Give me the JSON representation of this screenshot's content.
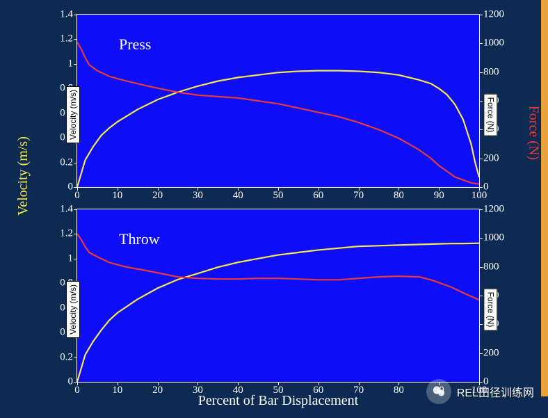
{
  "layout": {
    "background_color": "#0d2b52",
    "plot_background": "#0d0df7",
    "border_color": "#ffffff",
    "tick_color": "#ffffff",
    "tick_fontsize": 15,
    "orange_bar_color": "#e8a33d"
  },
  "x_axis": {
    "label": "Percent of Bar Displacement",
    "label_color": "#ffffff",
    "label_fontsize": 20,
    "min": 0,
    "max": 100,
    "ticks": [
      0,
      10,
      20,
      30,
      40,
      50,
      60,
      70,
      80,
      90,
      100
    ]
  },
  "y1_axis": {
    "big_label": "Velocity (m/s)",
    "big_label_color": "#f5e94b",
    "box_label": "Velocity (m/s)",
    "min": 0,
    "max": 1.4,
    "ticks": [
      0,
      0.2,
      0.4,
      0.6,
      0.8,
      1,
      1.2,
      1.4
    ]
  },
  "y2_axis": {
    "big_label": "Force (N)",
    "big_label_color": "#e83a3a",
    "box_label": "Force (N)",
    "min": 0,
    "max": 1200,
    "ticks": [
      0,
      200,
      400,
      600,
      800,
      1000,
      1200
    ]
  },
  "panels": [
    {
      "title": "Press",
      "velocity": {
        "color": "#f5e94b",
        "stroke_width": 2.2,
        "x": [
          0,
          2,
          4,
          6,
          8,
          10,
          15,
          20,
          25,
          30,
          35,
          40,
          45,
          50,
          55,
          60,
          65,
          70,
          75,
          80,
          85,
          88,
          90,
          92,
          94,
          96,
          98,
          99,
          100
        ],
        "y": [
          0,
          0.22,
          0.33,
          0.42,
          0.48,
          0.53,
          0.63,
          0.71,
          0.77,
          0.82,
          0.86,
          0.89,
          0.91,
          0.93,
          0.94,
          0.945,
          0.945,
          0.94,
          0.93,
          0.91,
          0.87,
          0.84,
          0.8,
          0.75,
          0.67,
          0.55,
          0.35,
          0.2,
          0.08
        ]
      },
      "force": {
        "color": "#e83a3a",
        "stroke_width": 2.2,
        "x": [
          0,
          1,
          2,
          3,
          5,
          8,
          12,
          18,
          25,
          30,
          35,
          40,
          45,
          50,
          55,
          60,
          65,
          70,
          75,
          80,
          85,
          88,
          90,
          92,
          94,
          96,
          98,
          100
        ],
        "y": [
          1010,
          960,
          900,
          850,
          810,
          770,
          740,
          700,
          660,
          640,
          630,
          620,
          600,
          580,
          550,
          520,
          490,
          450,
          400,
          340,
          260,
          200,
          150,
          110,
          70,
          50,
          30,
          20
        ]
      }
    },
    {
      "title": "Throw",
      "velocity": {
        "color": "#f5e94b",
        "stroke_width": 2.2,
        "x": [
          0,
          2,
          4,
          6,
          8,
          10,
          15,
          20,
          25,
          30,
          35,
          40,
          45,
          50,
          55,
          60,
          65,
          70,
          75,
          80,
          85,
          90,
          93,
          96,
          98,
          100
        ],
        "y": [
          0,
          0.22,
          0.33,
          0.42,
          0.5,
          0.56,
          0.67,
          0.76,
          0.83,
          0.88,
          0.93,
          0.97,
          1.0,
          1.03,
          1.05,
          1.07,
          1.085,
          1.1,
          1.105,
          1.11,
          1.115,
          1.12,
          1.122,
          1.123,
          1.124,
          1.125
        ]
      },
      "force": {
        "color": "#e83a3a",
        "stroke_width": 2.2,
        "x": [
          0,
          1,
          2,
          3,
          5,
          8,
          12,
          18,
          25,
          30,
          35,
          40,
          45,
          50,
          55,
          60,
          65,
          70,
          75,
          80,
          85,
          88,
          90,
          93,
          96,
          100
        ],
        "y": [
          1030,
          990,
          940,
          900,
          870,
          830,
          800,
          770,
          730,
          720,
          715,
          715,
          720,
          720,
          715,
          710,
          710,
          720,
          730,
          735,
          730,
          710,
          690,
          660,
          620,
          570
        ]
      }
    }
  ],
  "watermark": {
    "text": "REL田径训练网"
  }
}
